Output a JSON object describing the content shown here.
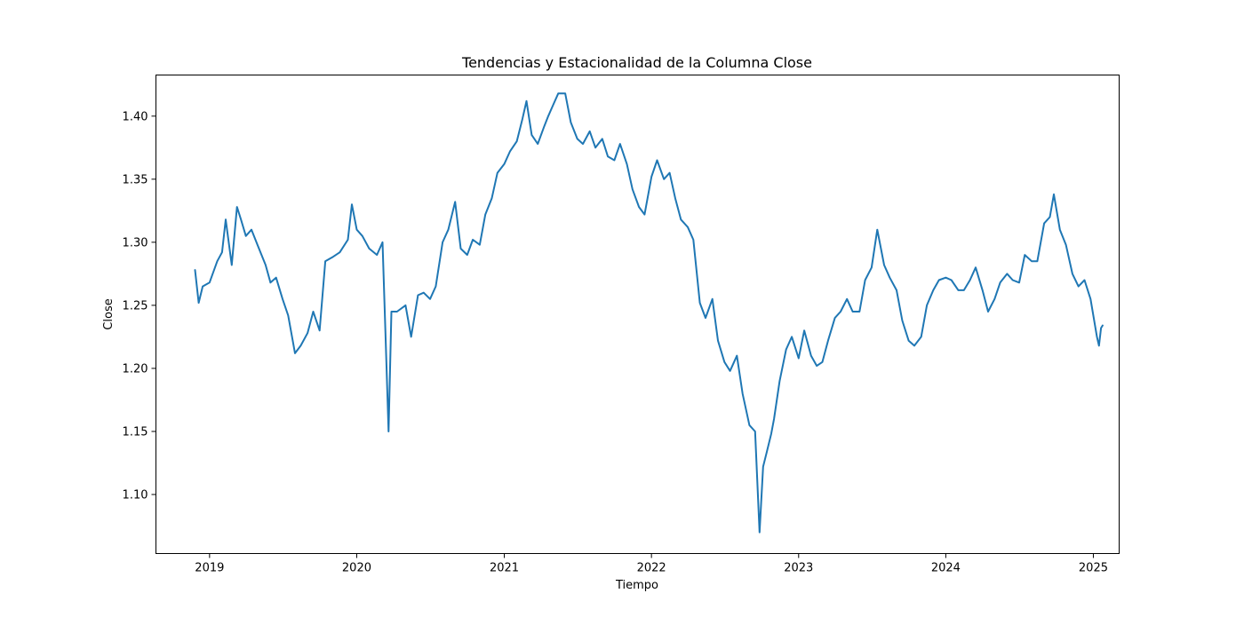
{
  "chart_data": {
    "type": "line",
    "title": "Tendencias y Estacionalidad de la Columna Close",
    "xlabel": "Tiempo",
    "ylabel": "Close",
    "x_ticks": [
      "2019-01-01",
      "2020-01-01",
      "2021-01-01",
      "2022-01-01",
      "2023-01-01",
      "2024-01-01",
      "2025-01-01"
    ],
    "x_tick_labels": [
      "2019",
      "2020",
      "2021",
      "2022",
      "2023",
      "2024",
      "2025"
    ],
    "y_ticks": [
      1.1,
      1.15,
      1.2,
      1.25,
      1.3,
      1.35,
      1.4
    ],
    "y_tick_labels": [
      "1.10",
      "1.15",
      "1.20",
      "1.25",
      "1.30",
      "1.35",
      "1.40"
    ],
    "xlim": [
      "2018-08-21",
      "2025-03-06"
    ],
    "ylim": [
      1.0532,
      1.4326
    ],
    "grid": false,
    "line_color": "#1f77b4",
    "series": [
      {
        "points": [
          [
            "2018-11-26",
            1.278
          ],
          [
            "2018-12-05",
            1.252
          ],
          [
            "2018-12-15",
            1.265
          ],
          [
            "2019-01-01",
            1.268
          ],
          [
            "2019-01-20",
            1.285
          ],
          [
            "2019-02-01",
            1.292
          ],
          [
            "2019-02-10",
            1.318
          ],
          [
            "2019-02-25",
            1.282
          ],
          [
            "2019-03-10",
            1.328
          ],
          [
            "2019-03-20",
            1.318
          ],
          [
            "2019-04-01",
            1.305
          ],
          [
            "2019-04-15",
            1.31
          ],
          [
            "2019-05-01",
            1.297
          ],
          [
            "2019-05-20",
            1.282
          ],
          [
            "2019-06-01",
            1.268
          ],
          [
            "2019-06-15",
            1.272
          ],
          [
            "2019-07-01",
            1.255
          ],
          [
            "2019-07-15",
            1.242
          ],
          [
            "2019-08-01",
            1.212
          ],
          [
            "2019-08-15",
            1.218
          ],
          [
            "2019-09-01",
            1.228
          ],
          [
            "2019-09-15",
            1.245
          ],
          [
            "2019-10-01",
            1.23
          ],
          [
            "2019-10-15",
            1.285
          ],
          [
            "2019-11-01",
            1.288
          ],
          [
            "2019-11-20",
            1.292
          ],
          [
            "2019-12-10",
            1.302
          ],
          [
            "2019-12-20",
            1.33
          ],
          [
            "2020-01-01",
            1.31
          ],
          [
            "2020-01-15",
            1.305
          ],
          [
            "2020-02-01",
            1.295
          ],
          [
            "2020-02-20",
            1.29
          ],
          [
            "2020-03-05",
            1.3
          ],
          [
            "2020-03-12",
            1.23
          ],
          [
            "2020-03-20",
            1.15
          ],
          [
            "2020-03-27",
            1.245
          ],
          [
            "2020-04-10",
            1.245
          ],
          [
            "2020-05-01",
            1.25
          ],
          [
            "2020-05-15",
            1.225
          ],
          [
            "2020-06-01",
            1.258
          ],
          [
            "2020-06-15",
            1.26
          ],
          [
            "2020-07-01",
            1.255
          ],
          [
            "2020-07-15",
            1.265
          ],
          [
            "2020-08-01",
            1.3
          ],
          [
            "2020-08-15",
            1.31
          ],
          [
            "2020-09-01",
            1.332
          ],
          [
            "2020-09-15",
            1.295
          ],
          [
            "2020-10-01",
            1.29
          ],
          [
            "2020-10-15",
            1.302
          ],
          [
            "2020-11-01",
            1.298
          ],
          [
            "2020-11-15",
            1.322
          ],
          [
            "2020-12-01",
            1.335
          ],
          [
            "2020-12-15",
            1.355
          ],
          [
            "2021-01-01",
            1.362
          ],
          [
            "2021-01-15",
            1.372
          ],
          [
            "2021-02-01",
            1.38
          ],
          [
            "2021-02-15",
            1.398
          ],
          [
            "2021-02-25",
            1.412
          ],
          [
            "2021-03-10",
            1.385
          ],
          [
            "2021-03-25",
            1.378
          ],
          [
            "2021-04-10",
            1.392
          ],
          [
            "2021-04-20",
            1.4
          ],
          [
            "2021-05-01",
            1.408
          ],
          [
            "2021-05-15",
            1.418
          ],
          [
            "2021-06-01",
            1.418
          ],
          [
            "2021-06-15",
            1.395
          ],
          [
            "2021-07-01",
            1.382
          ],
          [
            "2021-07-15",
            1.378
          ],
          [
            "2021-08-01",
            1.388
          ],
          [
            "2021-08-15",
            1.375
          ],
          [
            "2021-09-01",
            1.382
          ],
          [
            "2021-09-15",
            1.368
          ],
          [
            "2021-10-01",
            1.365
          ],
          [
            "2021-10-15",
            1.378
          ],
          [
            "2021-11-01",
            1.362
          ],
          [
            "2021-11-15",
            1.342
          ],
          [
            "2021-12-01",
            1.328
          ],
          [
            "2021-12-15",
            1.322
          ],
          [
            "2022-01-01",
            1.352
          ],
          [
            "2022-01-15",
            1.365
          ],
          [
            "2022-02-01",
            1.35
          ],
          [
            "2022-02-15",
            1.355
          ],
          [
            "2022-03-01",
            1.335
          ],
          [
            "2022-03-15",
            1.318
          ],
          [
            "2022-04-01",
            1.312
          ],
          [
            "2022-04-15",
            1.302
          ],
          [
            "2022-05-01",
            1.252
          ],
          [
            "2022-05-15",
            1.24
          ],
          [
            "2022-06-01",
            1.255
          ],
          [
            "2022-06-15",
            1.222
          ],
          [
            "2022-07-01",
            1.205
          ],
          [
            "2022-07-15",
            1.198
          ],
          [
            "2022-08-01",
            1.21
          ],
          [
            "2022-08-15",
            1.18
          ],
          [
            "2022-09-01",
            1.155
          ],
          [
            "2022-09-15",
            1.15
          ],
          [
            "2022-09-26",
            1.07
          ],
          [
            "2022-10-05",
            1.122
          ],
          [
            "2022-10-15",
            1.135
          ],
          [
            "2022-10-25",
            1.148
          ],
          [
            "2022-11-01",
            1.16
          ],
          [
            "2022-11-15",
            1.19
          ],
          [
            "2022-12-01",
            1.215
          ],
          [
            "2022-12-15",
            1.225
          ],
          [
            "2023-01-01",
            1.208
          ],
          [
            "2023-01-15",
            1.23
          ],
          [
            "2023-02-01",
            1.21
          ],
          [
            "2023-02-15",
            1.202
          ],
          [
            "2023-03-01",
            1.205
          ],
          [
            "2023-03-15",
            1.222
          ],
          [
            "2023-04-01",
            1.24
          ],
          [
            "2023-04-15",
            1.245
          ],
          [
            "2023-05-01",
            1.255
          ],
          [
            "2023-05-15",
            1.245
          ],
          [
            "2023-06-01",
            1.245
          ],
          [
            "2023-06-15",
            1.27
          ],
          [
            "2023-07-01",
            1.28
          ],
          [
            "2023-07-15",
            1.31
          ],
          [
            "2023-08-01",
            1.282
          ],
          [
            "2023-08-15",
            1.272
          ],
          [
            "2023-09-01",
            1.262
          ],
          [
            "2023-09-15",
            1.238
          ],
          [
            "2023-10-01",
            1.222
          ],
          [
            "2023-10-15",
            1.218
          ],
          [
            "2023-11-01",
            1.225
          ],
          [
            "2023-11-15",
            1.25
          ],
          [
            "2023-12-01",
            1.262
          ],
          [
            "2023-12-15",
            1.27
          ],
          [
            "2024-01-01",
            1.272
          ],
          [
            "2024-01-15",
            1.27
          ],
          [
            "2024-02-01",
            1.262
          ],
          [
            "2024-02-15",
            1.262
          ],
          [
            "2024-03-01",
            1.27
          ],
          [
            "2024-03-15",
            1.28
          ],
          [
            "2024-04-01",
            1.262
          ],
          [
            "2024-04-15",
            1.245
          ],
          [
            "2024-05-01",
            1.255
          ],
          [
            "2024-05-15",
            1.268
          ],
          [
            "2024-06-01",
            1.275
          ],
          [
            "2024-06-15",
            1.27
          ],
          [
            "2024-07-01",
            1.268
          ],
          [
            "2024-07-15",
            1.29
          ],
          [
            "2024-08-01",
            1.285
          ],
          [
            "2024-08-15",
            1.285
          ],
          [
            "2024-09-01",
            1.315
          ],
          [
            "2024-09-15",
            1.32
          ],
          [
            "2024-09-25",
            1.338
          ],
          [
            "2024-10-10",
            1.31
          ],
          [
            "2024-10-25",
            1.298
          ],
          [
            "2024-11-10",
            1.275
          ],
          [
            "2024-11-25",
            1.265
          ],
          [
            "2024-12-10",
            1.27
          ],
          [
            "2024-12-25",
            1.255
          ],
          [
            "2025-01-10",
            1.225
          ],
          [
            "2025-01-15",
            1.218
          ],
          [
            "2025-01-20",
            1.232
          ],
          [
            "2025-01-24",
            1.234
          ]
        ]
      }
    ]
  }
}
